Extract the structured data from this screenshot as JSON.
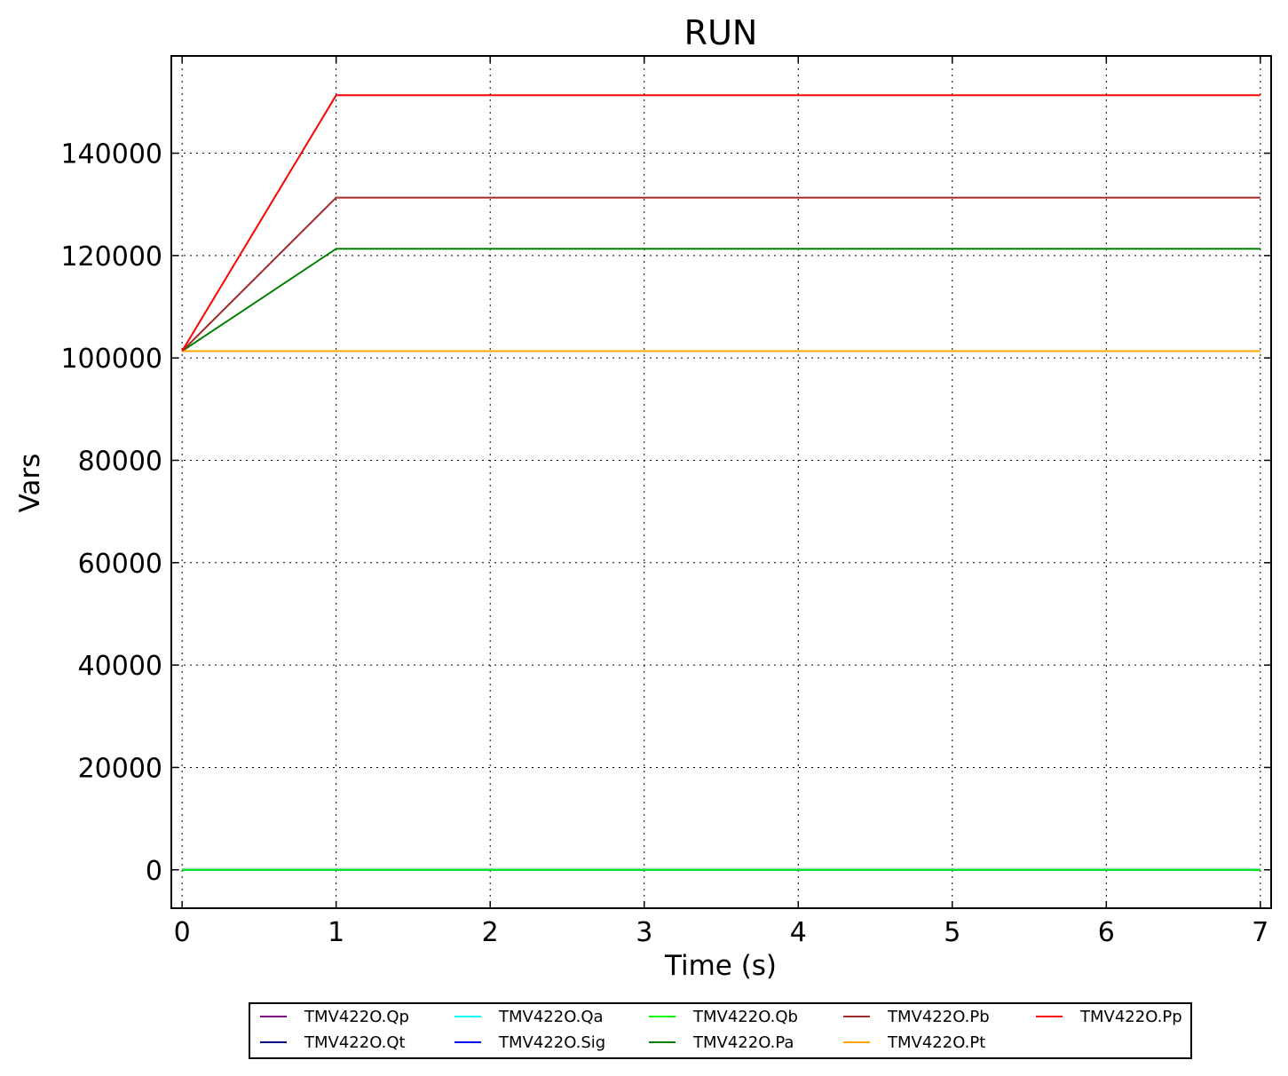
{
  "chart_data": {
    "type": "line",
    "title": "RUN",
    "xlabel": "Time (s)",
    "ylabel": "Vars",
    "xlim": [
      -0.07,
      7.07
    ],
    "ylim": [
      -7500,
      159000
    ],
    "xticks": [
      0,
      1,
      2,
      3,
      4,
      5,
      6,
      7
    ],
    "yticks": [
      0,
      20000,
      40000,
      60000,
      80000,
      100000,
      120000,
      140000
    ],
    "grid": true,
    "legend_position": "bottom-center",
    "x": [
      0,
      1,
      2,
      3,
      4,
      5,
      6,
      7
    ],
    "series": [
      {
        "name": "TMV422O.Qp",
        "color": "#800080",
        "values": [
          0,
          0,
          0,
          0,
          0,
          0,
          0,
          0
        ]
      },
      {
        "name": "TMV422O.Qt",
        "color": "#000080",
        "values": [
          0,
          0,
          0,
          0,
          0,
          0,
          0,
          0
        ]
      },
      {
        "name": "TMV422O.Qa",
        "color": "#00ffff",
        "values": [
          0,
          0,
          0,
          0,
          0,
          0,
          0,
          0
        ]
      },
      {
        "name": "TMV422O.Sig",
        "color": "#0000ff",
        "values": [
          0,
          0,
          0,
          0,
          0,
          0,
          0,
          0
        ]
      },
      {
        "name": "TMV422O.Qb",
        "color": "#00ff00",
        "values": [
          0,
          0,
          0,
          0,
          0,
          0,
          0,
          0
        ]
      },
      {
        "name": "TMV422O.Pa",
        "color": "#008000",
        "values": [
          101325,
          121325,
          121325,
          121325,
          121325,
          121325,
          121325,
          121325
        ]
      },
      {
        "name": "TMV422O.Pb",
        "color": "#a52a2a",
        "values": [
          101325,
          131325,
          131325,
          131325,
          131325,
          131325,
          131325,
          131325
        ]
      },
      {
        "name": "TMV422O.Pt",
        "color": "#ffa500",
        "values": [
          101325,
          101325,
          101325,
          101325,
          101325,
          101325,
          101325,
          101325
        ]
      },
      {
        "name": "TMV422O.Pp",
        "color": "#ff0000",
        "values": [
          101325,
          151325,
          151325,
          151325,
          151325,
          151325,
          151325,
          151325
        ]
      }
    ]
  }
}
